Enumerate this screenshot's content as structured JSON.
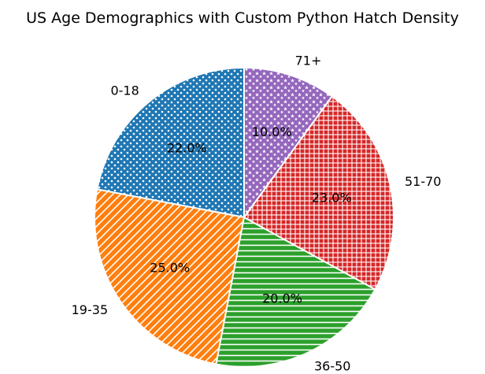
{
  "chart_data": {
    "type": "pie",
    "title": "US Age Demographics with Custom Python Hatch Density",
    "categories": [
      "0-18",
      "19-35",
      "36-50",
      "51-70",
      "71+"
    ],
    "values": [
      22.0,
      25.0,
      20.0,
      23.0,
      10.0
    ],
    "percent_labels": [
      "22.0%",
      "25.0%",
      "20.0%",
      "23.0%",
      "10.0%"
    ],
    "colors": [
      "#1f77b4",
      "#ff7f0e",
      "#2ca02c",
      "#d62728",
      "#9467bd"
    ],
    "hatches": [
      "dots",
      "diagonal",
      "horizontal",
      "grid",
      "stars"
    ],
    "start_angle_deg": 90,
    "direction": "counterclockwise",
    "edge_color": "#ffffff"
  }
}
